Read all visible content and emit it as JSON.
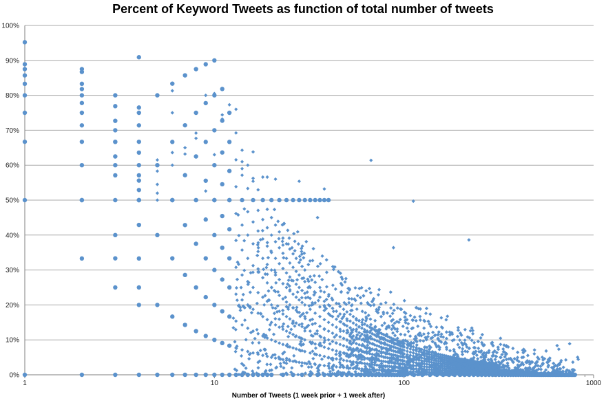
{
  "chart_data": {
    "type": "scatter",
    "title": "Percent of Keyword Tweets as function of total number of tweets",
    "xlabel": "Number of Tweets (1 week prior + 1 week after)",
    "ylabel": "",
    "x_scale": "log",
    "xlim": [
      1,
      1000
    ],
    "ylim": [
      0,
      100
    ],
    "grid": true,
    "marker_color": "#5b92cc",
    "xtick_labels": [
      "1",
      "10",
      "100",
      "1000"
    ],
    "ytick_labels": [
      "0%",
      "10%",
      "20%",
      "30%",
      "40%",
      "50%",
      "60%",
      "70%",
      "80%",
      "90%",
      "100%"
    ],
    "outliers": {
      "x": [
        1,
        1,
        1,
        1,
        1,
        1,
        2,
        2,
        2,
        2,
        2,
        2,
        2,
        2,
        3,
        3,
        3,
        3,
        3,
        3,
        3,
        3,
        4,
        4,
        4,
        4,
        4,
        4,
        4,
        4,
        4,
        5,
        5,
        5,
        5,
        5,
        6,
        6,
        6,
        6,
        7,
        7,
        8,
        8,
        8,
        9,
        9,
        10,
        10,
        11,
        11,
        12,
        13,
        14,
        14,
        16,
        16,
        18,
        19,
        21,
        28,
        35,
        38,
        67,
        88,
        112,
        220
      ],
      "y": [
        95.2,
        88.9,
        87.5,
        85.7,
        83.3,
        80.0,
        87.5,
        86.7,
        83.3,
        81.8,
        80.0,
        77.8,
        75.0,
        71.4,
        80.0,
        76.9,
        72.7,
        70.0,
        66.7,
        62.5,
        60.0,
        57.1,
        90.9,
        76.5,
        71.4,
        66.7,
        63.6,
        60.0,
        57.1,
        55.6,
        52.9,
        61.5,
        58.3,
        54.5,
        52.0,
        50.0,
        81.3,
        75.0,
        63.6,
        60.0,
        65.0,
        63.2,
        75.0,
        69.2,
        67.7,
        80.0,
        52.6,
        80.5,
        63.0,
        74.4,
        73.2,
        77.3,
        76.0,
        61.0,
        59.0,
        63.8,
        55.4,
        56.6,
        56.6,
        56.0,
        55.4,
        45.0,
        53.2,
        61.4,
        36.4,
        49.7,
        38.6
      ]
    }
  }
}
